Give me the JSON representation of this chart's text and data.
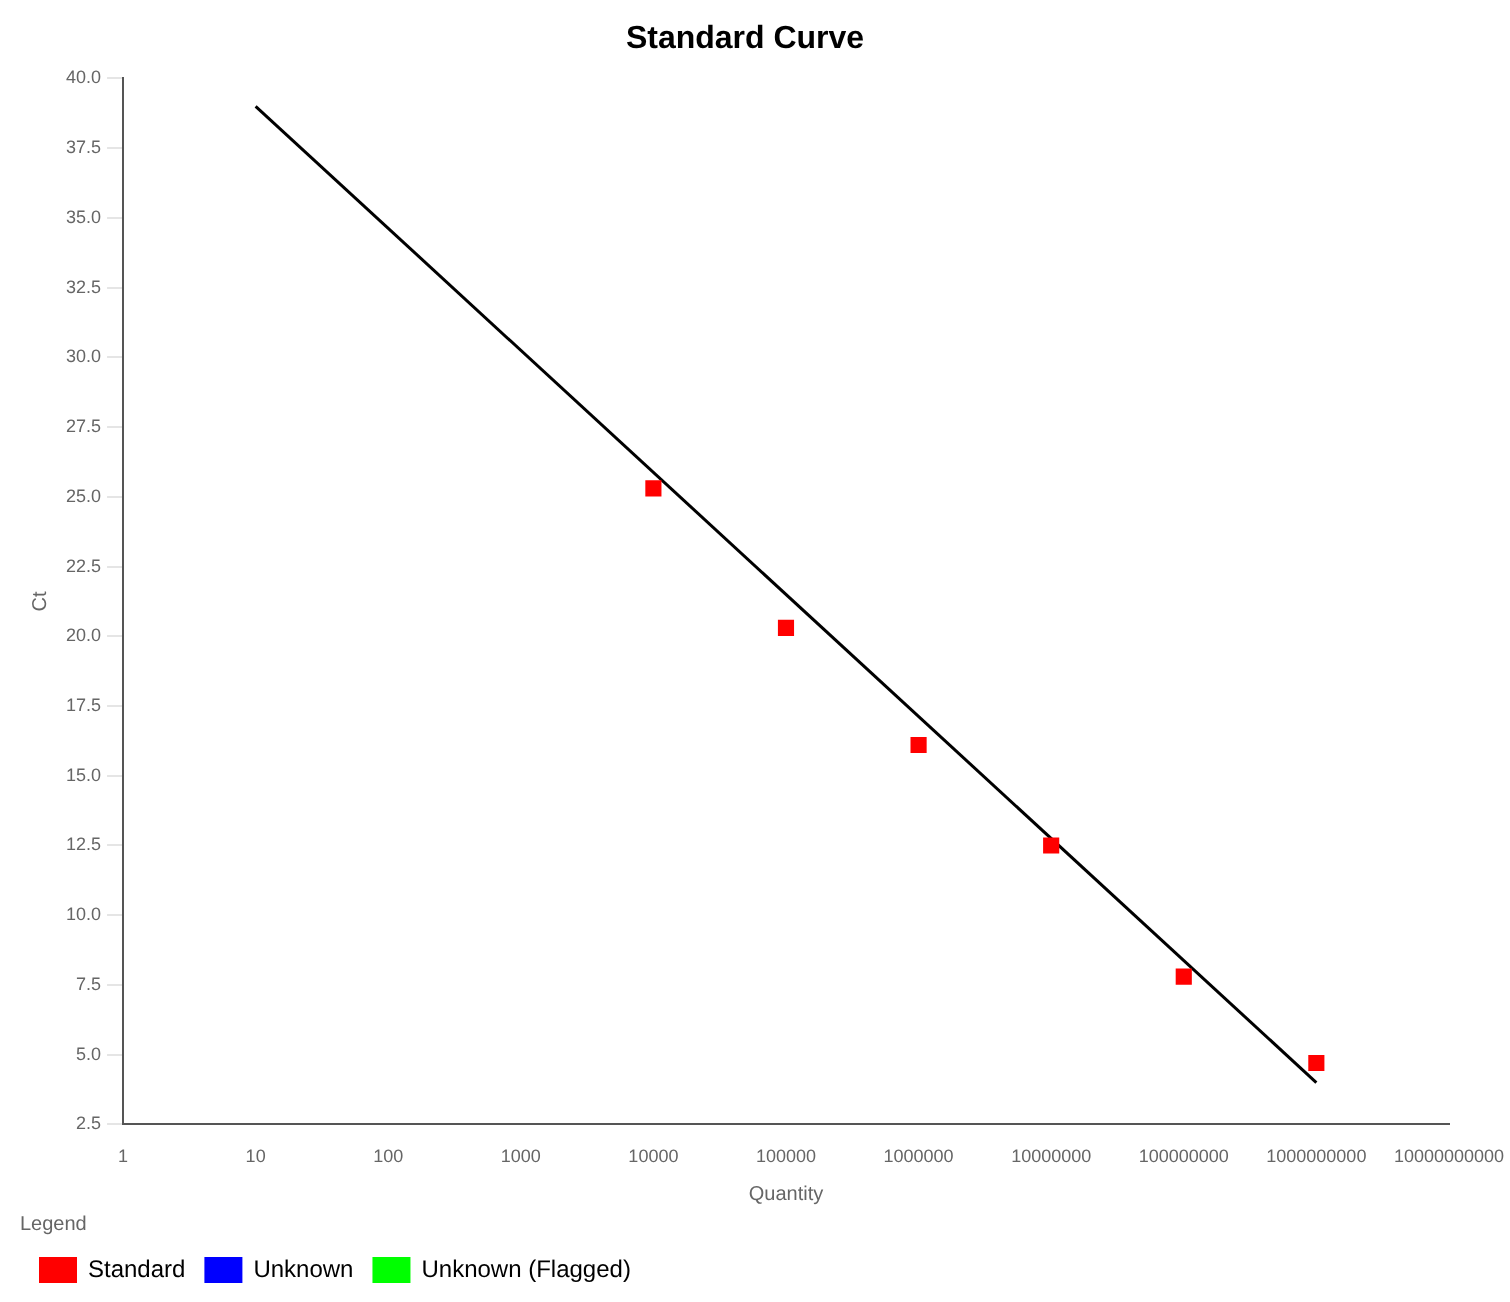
{
  "chart_data": {
    "type": "scatter",
    "title": "Standard Curve",
    "xlabel": "Quantity",
    "ylabel": "Ct",
    "legend_title": "Legend",
    "log": "x",
    "xlim": [
      1,
      10000000000
    ],
    "xticks": [
      1,
      10,
      100,
      1000,
      10000,
      100000,
      1000000,
      10000000,
      100000000,
      1000000000,
      10000000000
    ],
    "ylim": [
      2.5,
      40
    ],
    "yticks": [
      {
        "value": 2.5,
        "label": "2.5"
      },
      {
        "value": 5,
        "label": "5.0"
      },
      {
        "value": 7.5,
        "label": "7.5"
      },
      {
        "value": 10,
        "label": "10.0"
      },
      {
        "value": 12.5,
        "label": "12.5"
      },
      {
        "value": 15,
        "label": "15.0"
      },
      {
        "value": 17.5,
        "label": "17.5"
      },
      {
        "value": 20,
        "label": "20.0"
      },
      {
        "value": 22.5,
        "label": "22.5"
      },
      {
        "value": 25,
        "label": "25.0"
      },
      {
        "value": 27.5,
        "label": "27.5"
      },
      {
        "value": 30,
        "label": "30.0"
      },
      {
        "value": 32.5,
        "label": "32.5"
      },
      {
        "value": 35,
        "label": "35.0"
      },
      {
        "value": 37.5,
        "label": "37.5"
      },
      {
        "value": 40,
        "label": "40.0"
      }
    ],
    "grid": false,
    "legend": "bottom",
    "marker": "square",
    "series": [
      {
        "name": "Standard",
        "color": "#ff0000",
        "x": [
          10000,
          100000,
          1000000,
          10000000,
          100000000,
          1000000000
        ],
        "values": [
          25.3,
          20.3,
          16.1,
          12.5,
          7.8,
          4.7
        ]
      },
      {
        "name": "Unknown",
        "color": "#0000ff"
      },
      {
        "name": "Unknown (Flagged)",
        "color": "#00ff00"
      },
      {
        "type": "line",
        "color": "#000000",
        "x": [
          10,
          1000000000
        ],
        "values": [
          39.0,
          4.0
        ],
        "marker": "none"
      }
    ]
  }
}
